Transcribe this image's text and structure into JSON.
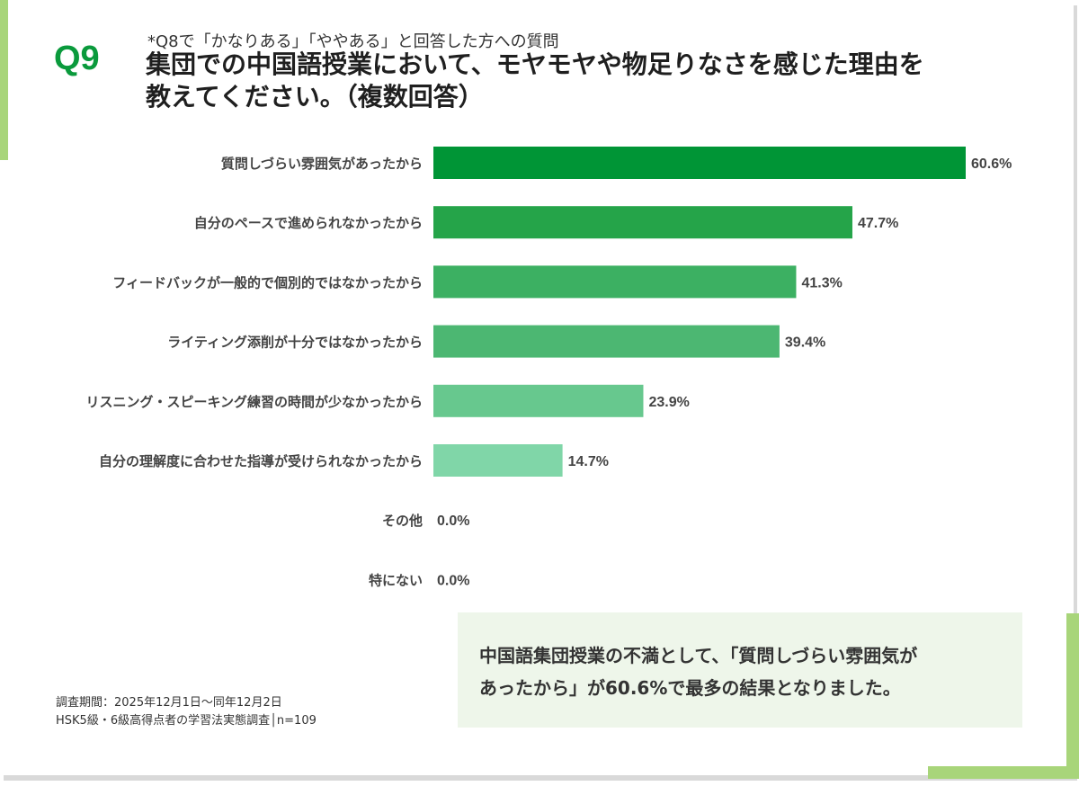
{
  "header": {
    "q_label": "Q9",
    "pre_note": "*Q8で「かなりある」「ややある」と回答した方への質問",
    "title_line1": "集団での中国語授業において、モヤモヤや物足りなさを感じた理由を",
    "title_line2": "教えてください。（複数回答）"
  },
  "chart_data": {
    "type": "bar",
    "orientation": "horizontal",
    "categories": [
      "質問しづらい雰囲気があったから",
      "自分のペースで進められなかったから",
      "フィードバックが一般的で個別的ではなかったから",
      "ライティング添削が十分ではなかったから",
      "リスニング・スピーキング練習の時間が少なかったから",
      "自分の理解度に合わせた指導が受けられなかったから",
      "その他",
      "特にない"
    ],
    "values": [
      60.6,
      47.7,
      41.3,
      39.4,
      23.9,
      14.7,
      0.0,
      0.0
    ],
    "value_labels": [
      "60.6%",
      "47.7%",
      "41.3%",
      "39.4%",
      "23.9%",
      "14.7%",
      "0.0%",
      "0.0%"
    ],
    "colors": [
      "#009536",
      "#25a449",
      "#3cb062",
      "#4cb772",
      "#67c88e",
      "#80d6a8",
      "#80d6a8",
      "#80d6a8"
    ],
    "grid": false,
    "legend": "none"
  },
  "summary": {
    "line1": "中国語集団授業の不満として、「質問しづらい雰囲気が",
    "line2": "あったから」が60.6%で最多の結果となりました。"
  },
  "footnote": {
    "line1": "調査期間：2025年12月1日～同年12月2日",
    "line2": "HSK5級・6級高得点者の学習法実態調査│n=109"
  }
}
